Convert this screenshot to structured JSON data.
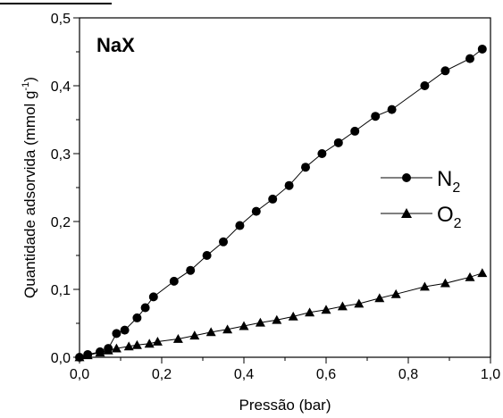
{
  "chart_data": {
    "type": "scatter",
    "title": "",
    "panel_label": "NaX",
    "xlabel": "Pressão (bar)",
    "ylabel": "Quantidade adsorvida (mmol g",
    "ylabel_sup": "-1",
    "ylabel_end": ")",
    "xlim": [
      0.0,
      1.0
    ],
    "ylim": [
      0.0,
      0.5
    ],
    "xticks": [
      "0,0",
      "0,2",
      "0,4",
      "0,6",
      "0,8",
      "1,0"
    ],
    "yticks": [
      "0,0",
      "0,1",
      "0,2",
      "0,3",
      "0,4",
      "0,5"
    ],
    "legend_position": "center-right",
    "series": [
      {
        "name": "N",
        "name_sub": "2",
        "marker": "circle",
        "color": "#000000",
        "x": [
          0.0,
          0.02,
          0.05,
          0.07,
          0.09,
          0.11,
          0.14,
          0.16,
          0.18,
          0.23,
          0.27,
          0.31,
          0.35,
          0.39,
          0.43,
          0.47,
          0.51,
          0.55,
          0.59,
          0.63,
          0.67,
          0.72,
          0.76,
          0.84,
          0.89,
          0.95,
          0.98
        ],
        "y": [
          0.0,
          0.004,
          0.008,
          0.013,
          0.035,
          0.04,
          0.058,
          0.073,
          0.089,
          0.112,
          0.128,
          0.15,
          0.17,
          0.194,
          0.215,
          0.233,
          0.253,
          0.28,
          0.3,
          0.316,
          0.333,
          0.355,
          0.365,
          0.4,
          0.422,
          0.44,
          0.454
        ]
      },
      {
        "name": "O",
        "name_sub": "2",
        "marker": "triangle",
        "color": "#000000",
        "x": [
          0.0,
          0.02,
          0.05,
          0.07,
          0.09,
          0.12,
          0.14,
          0.17,
          0.19,
          0.24,
          0.28,
          0.32,
          0.36,
          0.4,
          0.44,
          0.48,
          0.52,
          0.56,
          0.6,
          0.64,
          0.68,
          0.73,
          0.77,
          0.84,
          0.89,
          0.95,
          0.98
        ],
        "y": [
          0.0,
          0.003,
          0.007,
          0.01,
          0.013,
          0.016,
          0.018,
          0.02,
          0.023,
          0.027,
          0.032,
          0.037,
          0.041,
          0.046,
          0.051,
          0.055,
          0.06,
          0.066,
          0.07,
          0.075,
          0.079,
          0.087,
          0.093,
          0.104,
          0.109,
          0.118,
          0.124
        ]
      }
    ]
  }
}
